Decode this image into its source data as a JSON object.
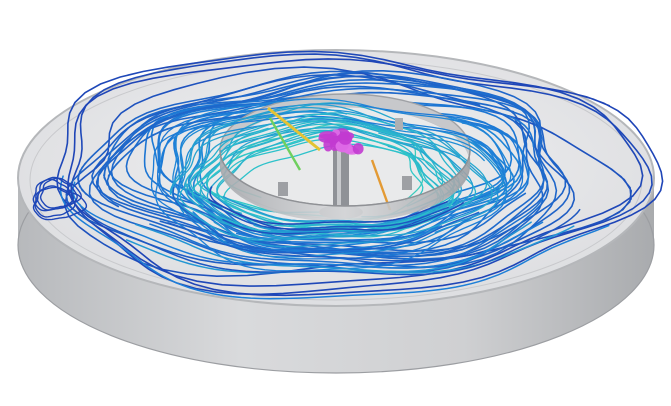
{
  "image": {
    "subject": "streamline-visualization-in-circular-tank",
    "icon_names": [
      "outer-tank",
      "inner-ring-baffle",
      "central-mixer",
      "streamlines"
    ]
  },
  "colors": {
    "background": "#ffffff",
    "tank_wall": "#c9cacc",
    "tank_floor": "#e4e5e6",
    "tank_rim": "#f3f3f4",
    "streamline_far": "#1f3fb3",
    "streamline_mid": "#1d7fd8",
    "streamline_near": "#2ec7c9",
    "streamline_core": "#7fe07a",
    "core_accent": "#e3c234",
    "impeller": "#c23bd0"
  }
}
